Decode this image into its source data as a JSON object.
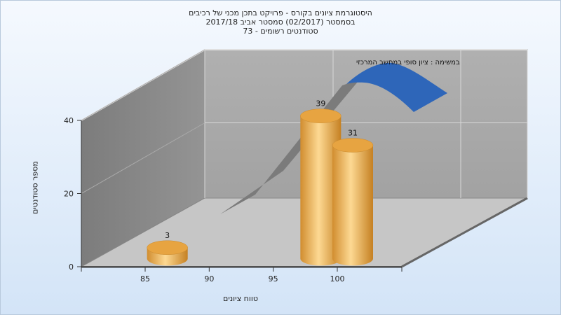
{
  "title_lines": [
    "היסטוגרמת ציונים בקורס - פרויקט בתכן מכני של רכיבים",
    "בסמסטר  (02/2017)  סמסטר אביב 2017/18",
    "סטודנטים רשומים - 73"
  ],
  "chart_data": {
    "type": "bar",
    "xlabel": "טווח ציונים",
    "ylabel": "מספר סטודנטים",
    "x_ticks": [
      "85",
      "90",
      "95",
      "100"
    ],
    "y_ticks": [
      0,
      20,
      40
    ],
    "ylim": [
      0,
      40
    ],
    "series": [
      {
        "name": "",
        "bars": [
          {
            "x_position": 87.5,
            "value": 3,
            "label": "3"
          },
          {
            "x_position": 97.5,
            "value": 39,
            "label": "39"
          },
          {
            "x_position": 100,
            "value": 31,
            "label": "31"
          }
        ]
      }
    ],
    "overlay_label": "במשימה : ציון סופי במחשב המרכזי",
    "colors": {
      "bar_light": "#fbd58c",
      "bar_mid": "#e8a54a",
      "bar_dark": "#c27e22",
      "curve": "#2e63b8",
      "wall_back": "#a9a9a9",
      "wall_left": "#8a8a8a",
      "floor": "#c8c8c8"
    }
  }
}
